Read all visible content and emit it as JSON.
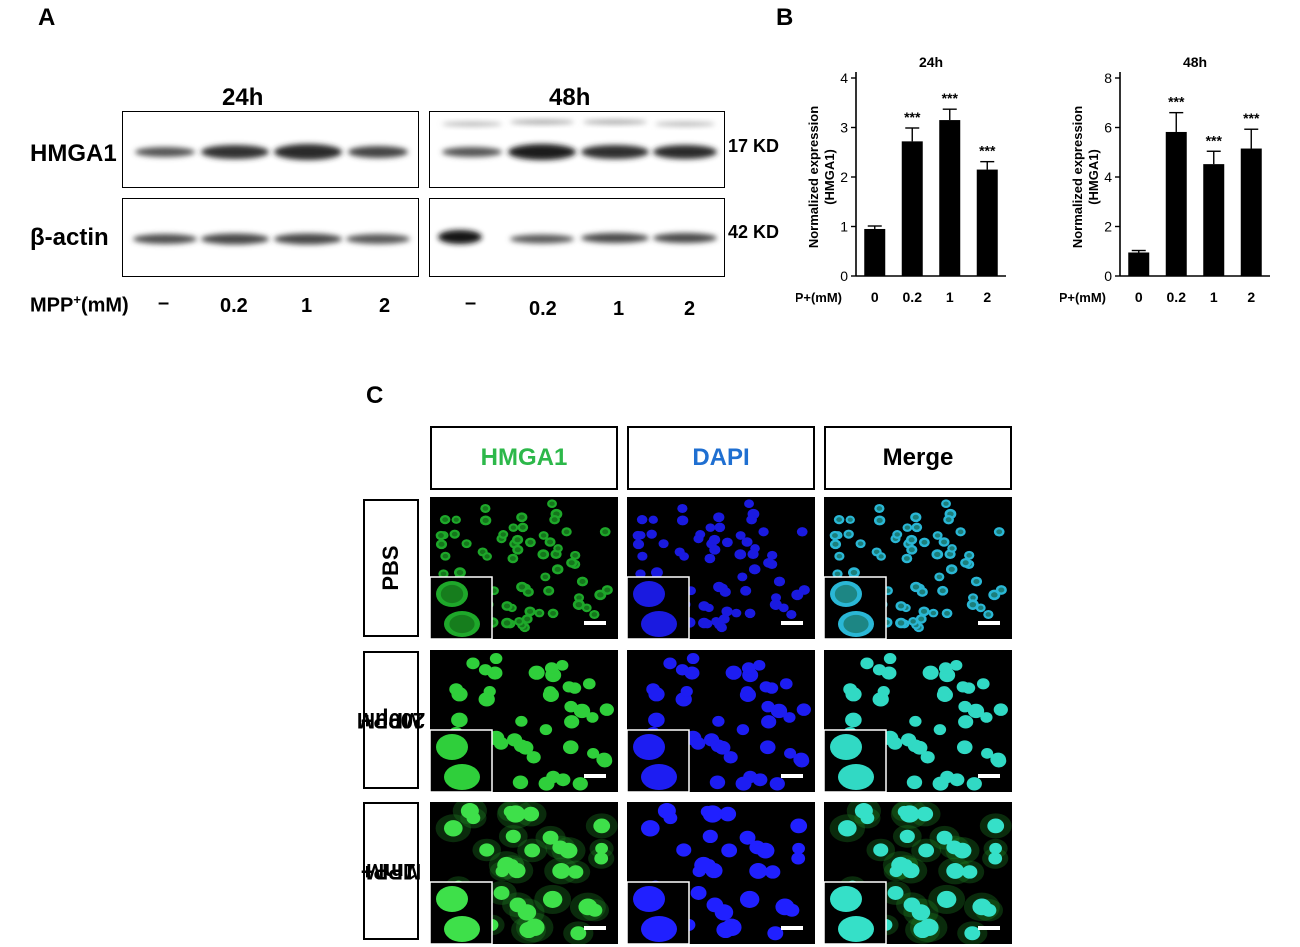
{
  "panel_labels": {
    "a": "A",
    "b": "B",
    "c": "C"
  },
  "western_blot": {
    "time_labels": [
      "24h",
      "48h"
    ],
    "row_labels": {
      "hmga1": "HMGA1",
      "actin": "β-actin"
    },
    "size_labels": {
      "hmga1": "17 KD",
      "actin": "42 KD"
    },
    "treatment_label": "MPP",
    "treatment_sup": "+",
    "treatment_unit": "(mM)",
    "lane_labels": [
      "–",
      "0.2",
      "1",
      "2",
      "–",
      "0.2",
      "1",
      "2"
    ]
  },
  "chart_data": [
    {
      "type": "bar",
      "title": "24h",
      "ylabel": "Normalized expression (HMGA1)",
      "xlabel": "MPP+(mM)",
      "categories": [
        "0",
        "0.2",
        "1",
        "2"
      ],
      "values": [
        0.95,
        2.72,
        3.15,
        2.15
      ],
      "errors": [
        0.06,
        0.27,
        0.22,
        0.16
      ],
      "annotations": [
        "",
        "***",
        "***",
        "***"
      ],
      "ylim": [
        0,
        4
      ],
      "yticks": [
        0,
        1,
        2,
        3,
        4
      ],
      "bar_color": "#000000"
    },
    {
      "type": "bar",
      "title": "48h",
      "ylabel": "Normalized expression (HMGA1)",
      "xlabel": "MPP+(mM)",
      "categories": [
        "0",
        "0.2",
        "1",
        "2"
      ],
      "values": [
        0.95,
        5.82,
        4.52,
        5.15
      ],
      "errors": [
        0.08,
        0.78,
        0.52,
        0.78
      ],
      "annotations": [
        "",
        "***",
        "***",
        "***"
      ],
      "ylim": [
        0,
        8
      ],
      "yticks": [
        0,
        2,
        4,
        6,
        8
      ],
      "bar_color": "#000000"
    }
  ],
  "immunofluorescence": {
    "channels": [
      {
        "label": "HMGA1",
        "color": "#2db84a"
      },
      {
        "label": "DAPI",
        "color": "#1f6fd1"
      },
      {
        "label": "Merge",
        "color": "#000000"
      }
    ],
    "rows": [
      {
        "line1": "PBS",
        "line2": ""
      },
      {
        "line1": "MPP+",
        "line2": "200μM"
      },
      {
        "line1": "MPP+",
        "line2": "1mM"
      }
    ]
  }
}
